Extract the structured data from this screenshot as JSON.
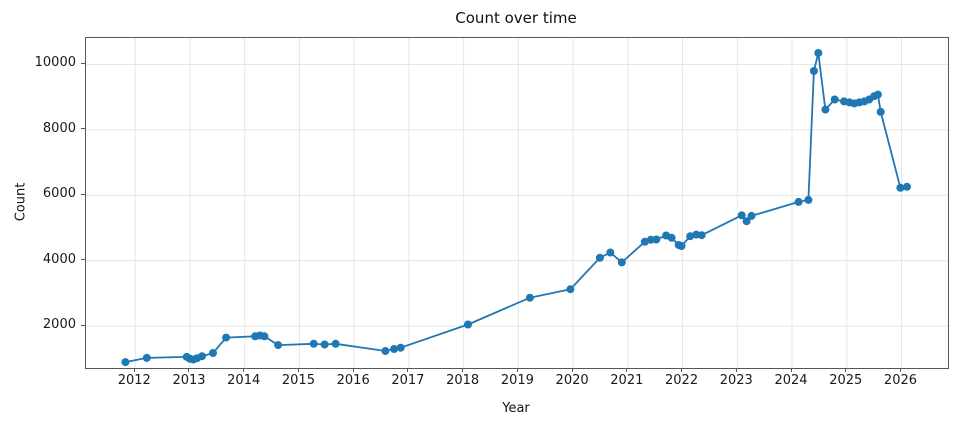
{
  "chart_data": {
    "type": "line",
    "title": "Count over time",
    "xlabel": "Year",
    "ylabel": "Count",
    "xlim": [
      2011.1,
      2026.85
    ],
    "ylim": [
      720,
      10810
    ],
    "x_ticks": [
      2012,
      2013,
      2014,
      2015,
      2016,
      2017,
      2018,
      2019,
      2020,
      2021,
      2022,
      2023,
      2024,
      2025,
      2026
    ],
    "y_ticks": [
      2000,
      4000,
      6000,
      8000,
      10000
    ],
    "grid": true,
    "grid_color": "#e6e6e6",
    "spine_color": "#565656",
    "line_color": "#1f77b4",
    "marker": "o",
    "marker_radius": 4,
    "line_width": 1.8,
    "legend": "none",
    "series": [
      {
        "name": "Count",
        "points": [
          [
            2011.82,
            900
          ],
          [
            2012.21,
            1030
          ],
          [
            2012.94,
            1060
          ],
          [
            2013.0,
            1000
          ],
          [
            2013.06,
            980
          ],
          [
            2013.13,
            1020
          ],
          [
            2013.22,
            1080
          ],
          [
            2013.42,
            1180
          ],
          [
            2013.66,
            1650
          ],
          [
            2014.19,
            1690
          ],
          [
            2014.28,
            1715
          ],
          [
            2014.36,
            1690
          ],
          [
            2014.61,
            1420
          ],
          [
            2015.26,
            1460
          ],
          [
            2015.46,
            1440
          ],
          [
            2015.66,
            1460
          ],
          [
            2016.57,
            1240
          ],
          [
            2016.73,
            1300
          ],
          [
            2016.85,
            1340
          ],
          [
            2018.08,
            2050
          ],
          [
            2019.21,
            2870
          ],
          [
            2019.95,
            3130
          ],
          [
            2020.49,
            4090
          ],
          [
            2020.68,
            4250
          ],
          [
            2020.89,
            3950
          ],
          [
            2021.31,
            4580
          ],
          [
            2021.42,
            4640
          ],
          [
            2021.52,
            4650
          ],
          [
            2021.7,
            4770
          ],
          [
            2021.8,
            4700
          ],
          [
            2021.93,
            4480
          ],
          [
            2021.98,
            4450
          ],
          [
            2022.14,
            4750
          ],
          [
            2022.25,
            4800
          ],
          [
            2022.35,
            4780
          ],
          [
            2023.08,
            5390
          ],
          [
            2023.17,
            5210
          ],
          [
            2023.26,
            5370
          ],
          [
            2024.12,
            5800
          ],
          [
            2024.3,
            5860
          ],
          [
            2024.4,
            9800
          ],
          [
            2024.48,
            10350
          ],
          [
            2024.61,
            8620
          ],
          [
            2024.78,
            8930
          ],
          [
            2024.95,
            8870
          ],
          [
            2025.05,
            8840
          ],
          [
            2025.14,
            8810
          ],
          [
            2025.23,
            8840
          ],
          [
            2025.32,
            8870
          ],
          [
            2025.41,
            8930
          ],
          [
            2025.5,
            9030
          ],
          [
            2025.57,
            9080
          ],
          [
            2025.62,
            8550
          ],
          [
            2025.98,
            6230
          ],
          [
            2026.1,
            6260
          ]
        ]
      }
    ]
  }
}
